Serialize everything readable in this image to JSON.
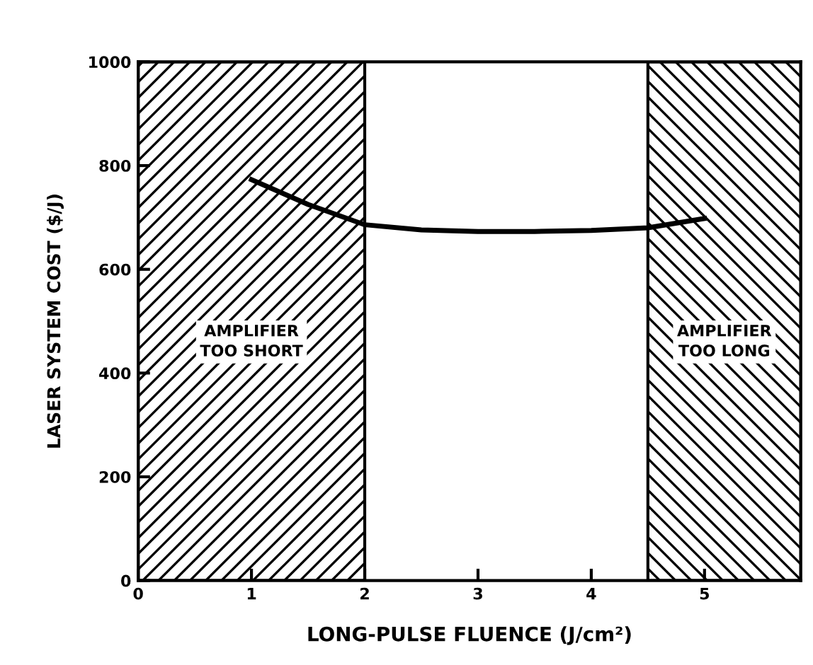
{
  "chart_data": {
    "type": "line",
    "xlabel": "LONG-PULSE FLUENCE (J/cm²)",
    "ylabel": "LASER SYSTEM COST ($/J)",
    "x": [
      1,
      1.5,
      2,
      2.5,
      3,
      3.5,
      4,
      4.5,
      5
    ],
    "series": [
      {
        "color": "#000000",
        "values": [
          773,
          725,
          686,
          676,
          673,
          673,
          675,
          680,
          698
        ]
      }
    ],
    "xlim": [
      0,
      5.85
    ],
    "xticks": [
      0,
      1,
      2,
      3,
      4,
      5
    ],
    "ylim": [
      0,
      1000
    ],
    "yticks": [
      0,
      200,
      400,
      600,
      800,
      1000
    ],
    "marker": "none",
    "line_style": "solid",
    "bands": [
      {
        "axis": "x",
        "from": 0,
        "to": 2,
        "label": "AMPLIFIER\nTOO SHORT",
        "color": "#000000"
      },
      {
        "axis": "x",
        "from": 4.5,
        "to": 5.85,
        "label": "AMPLIFIER\nTOO LONG",
        "color": "#000000"
      }
    ]
  }
}
